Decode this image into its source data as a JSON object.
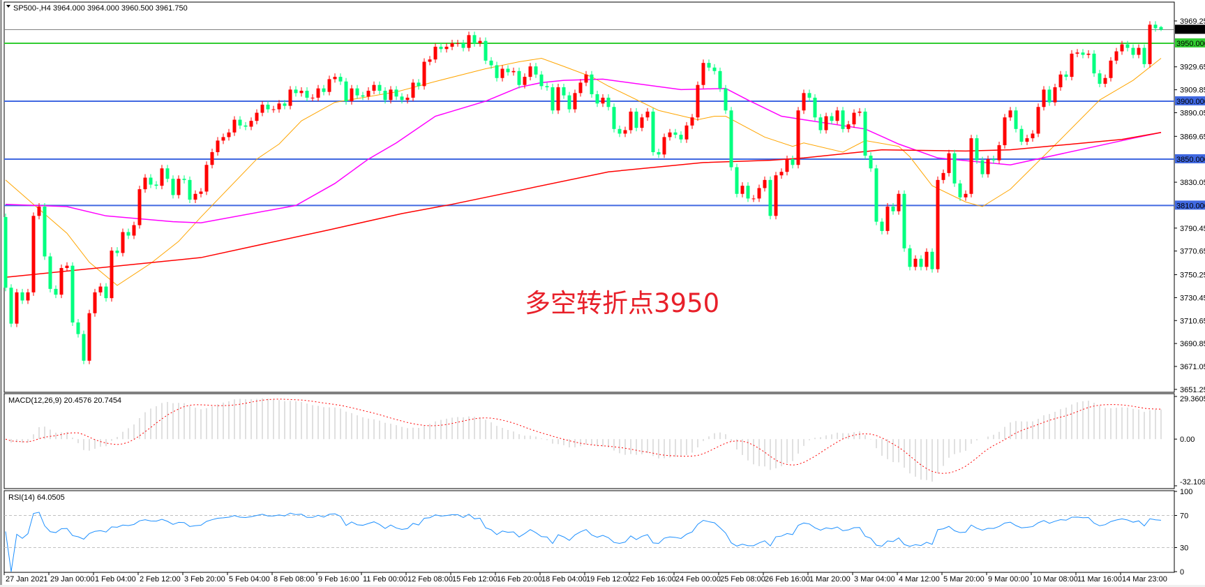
{
  "header": {
    "symbol": "SP500-,H4",
    "ohlc_text": "3964.000 3964.000 3960.500 3961.750",
    "menu_icon": "triangle-down-icon"
  },
  "annotation": "多空转折点3950",
  "indicators": {
    "macd_label": "MACD(12,26,9) 20.4576 20.7454",
    "macd_params": [
      12,
      26,
      9
    ],
    "macd_axis": [
      "29.3605",
      "0.00",
      "-32.1096"
    ],
    "macd_range": [
      -32.1096,
      29.3605
    ],
    "rsi_label": "RSI(14) 64.0505",
    "rsi_period": 14,
    "rsi_axis": [
      "100",
      "70",
      "30",
      "0"
    ],
    "rsi_levels": [
      70,
      30
    ]
  },
  "colors": {
    "bull": "#ff0000",
    "bear": "#00ff7f",
    "support_blue": "#4169e1",
    "pivot_green": "#32cd32",
    "bid_line": "#808080",
    "ma_fast": "#ffa500",
    "ma_mid": "#ff00ff",
    "ma_slow": "#ff0000",
    "macd_hist": "#c0c0c0",
    "macd_signal": "#ff0000",
    "rsi": "#1e90ff"
  },
  "chart_data": {
    "type": "candlestick",
    "title": "SP500-,H4",
    "ylim": [
      3651.25,
      3969.25
    ],
    "price_ticks": [
      "3969.250",
      "3929.650",
      "3909.850",
      "3890.050",
      "3869.650",
      "3830.050",
      "3790.450",
      "3770.650",
      "3750.250",
      "3730.450",
      "3710.650",
      "3690.850",
      "3671.050",
      "3651.250"
    ],
    "first_open": 3800,
    "last_candle": {
      "open": 3964.0,
      "high": 3964.0,
      "low": 3960.5,
      "close": 3961.75
    },
    "closes": [
      3739,
      3708,
      3735,
      3728,
      3735,
      3801,
      3809,
      3766,
      3738,
      3733,
      3756,
      3758,
      3709,
      3699,
      3676,
      3717,
      3735,
      3740,
      3730,
      3771,
      3769,
      3787,
      3784,
      3793,
      3824,
      3834,
      3828,
      3827,
      3842,
      3833,
      3819,
      3833,
      3832,
      3815,
      3820,
      3822,
      3845,
      3856,
      3866,
      3869,
      3873,
      3884,
      3879,
      3878,
      3883,
      3890,
      3897,
      3893,
      3893,
      3898,
      3896,
      3910,
      3907,
      3909,
      3903,
      3903,
      3911,
      3908,
      3919,
      3921,
      3917,
      3900,
      3911,
      3905,
      3904,
      3909,
      3914,
      3909,
      3901,
      3910,
      3904,
      3901,
      3903,
      3916,
      3913,
      3934,
      3936,
      3947,
      3945,
      3947,
      3950,
      3950,
      3946,
      3957,
      3950,
      3952,
      3935,
      3931,
      3920,
      3928,
      3925,
      3926,
      3914,
      3921,
      3930,
      3923,
      3913,
      3912,
      3892,
      3912,
      3905,
      3893,
      3907,
      3916,
      3923,
      3906,
      3898,
      3903,
      3895,
      3876,
      3872,
      3875,
      3891,
      3877,
      3886,
      3891,
      3856,
      3854,
      3869,
      3873,
      3871,
      3867,
      3879,
      3886,
      3914,
      3933,
      3929,
      3926,
      3911,
      3892,
      3843,
      3820,
      3827,
      3816,
      3816,
      3825,
      3832,
      3801,
      3836,
      3839,
      3850,
      3845,
      3892,
      3907,
      3903,
      3886,
      3875,
      3887,
      3883,
      3892,
      3876,
      3880,
      3890,
      3891,
      3853,
      3842,
      3796,
      3788,
      3809,
      3805,
      3820,
      3773,
      3757,
      3764,
      3757,
      3770,
      3755,
      3832,
      3838,
      3855,
      3829,
      3817,
      3820,
      3868,
      3849,
      3837,
      3850,
      3849,
      3862,
      3886,
      3892,
      3876,
      3865,
      3868,
      3872,
      3895,
      3910,
      3899,
      3912,
      3923,
      3921,
      3941,
      3942,
      3940,
      3941,
      3924,
      3915,
      3920,
      3935,
      3943,
      3949,
      3946,
      3940,
      3946,
      3932,
      3966,
      3963,
      3961.75
    ],
    "moving_averages": [
      {
        "color_key": "ma_fast",
        "points": [
          [
            0,
            3832
          ],
          [
            5,
            3811
          ],
          [
            11,
            3786
          ],
          [
            15,
            3761
          ],
          [
            20,
            3741
          ],
          [
            26,
            3760
          ],
          [
            31,
            3779
          ],
          [
            35,
            3800
          ],
          [
            45,
            3850
          ],
          [
            49,
            3863
          ],
          [
            53,
            3883
          ],
          [
            59,
            3899
          ],
          [
            70,
            3908
          ],
          [
            77,
            3917
          ],
          [
            86,
            3928
          ],
          [
            92,
            3934
          ],
          [
            96,
            3937
          ],
          [
            100,
            3930
          ],
          [
            105,
            3921
          ],
          [
            108,
            3913
          ],
          [
            117,
            3892
          ],
          [
            124,
            3884
          ],
          [
            127,
            3887
          ],
          [
            129,
            3887
          ],
          [
            136,
            3869
          ],
          [
            141,
            3861
          ],
          [
            143,
            3864
          ],
          [
            150,
            3856
          ],
          [
            154,
            3866
          ],
          [
            160,
            3861
          ],
          [
            162,
            3852
          ],
          [
            166,
            3827
          ],
          [
            172,
            3813
          ],
          [
            175,
            3809
          ],
          [
            180,
            3824
          ],
          [
            189,
            3867
          ],
          [
            196,
            3901
          ],
          [
            202,
            3918
          ],
          [
            207,
            3937
          ]
        ]
      },
      {
        "color_key": "ma_mid",
        "points": [
          [
            0,
            3811
          ],
          [
            11,
            3809
          ],
          [
            18,
            3801
          ],
          [
            30,
            3796
          ],
          [
            35,
            3795
          ],
          [
            52,
            3810
          ],
          [
            59,
            3829
          ],
          [
            65,
            3850
          ],
          [
            70,
            3864
          ],
          [
            77,
            3887
          ],
          [
            86,
            3900
          ],
          [
            92,
            3912
          ],
          [
            96,
            3916
          ],
          [
            100,
            3918
          ],
          [
            107,
            3919
          ],
          [
            121,
            3910
          ],
          [
            129,
            3911
          ],
          [
            133,
            3901
          ],
          [
            139,
            3887
          ],
          [
            143,
            3884
          ],
          [
            154,
            3876
          ],
          [
            160,
            3863
          ],
          [
            167,
            3851
          ],
          [
            180,
            3845
          ],
          [
            202,
            3868
          ],
          [
            207,
            3873
          ]
        ]
      },
      {
        "color_key": "ma_slow",
        "points": [
          [
            0,
            3748
          ],
          [
            35,
            3765
          ],
          [
            58,
            3789
          ],
          [
            71,
            3803
          ],
          [
            80,
            3811
          ],
          [
            108,
            3839
          ],
          [
            125,
            3847
          ],
          [
            137,
            3849
          ],
          [
            143,
            3851
          ],
          [
            157,
            3858
          ],
          [
            172,
            3857
          ],
          [
            180,
            3858
          ],
          [
            200,
            3867
          ],
          [
            207,
            3873
          ]
        ]
      }
    ],
    "horizontal_lines": [
      {
        "price": 3961.75,
        "label": "3961.750",
        "color_key": "bid_line",
        "label_bg": "#000000",
        "label_fg": "#ffffff"
      },
      {
        "price": 3950,
        "label": "3950.000",
        "color_key": "pivot_green",
        "label_bg": "#32cd32",
        "label_fg": "#ffffff"
      },
      {
        "price": 3900,
        "label": "3900.000",
        "color_key": "support_blue",
        "label_bg": "#4169e1",
        "label_fg": "#ffffff"
      },
      {
        "price": 3850,
        "label": "3850.000",
        "color_key": "support_blue",
        "label_bg": "#4169e1",
        "label_fg": "#ffffff"
      },
      {
        "price": 3810,
        "label": "3810.000",
        "color_key": "support_blue",
        "label_bg": "#4169e1",
        "label_fg": "#ffffff"
      }
    ],
    "time_labels": [
      {
        "index": 0,
        "label": "27 Jan 2021"
      },
      {
        "index": 8,
        "label": "29 Jan 00:00"
      },
      {
        "index": 16,
        "label": "1 Feb 04:00"
      },
      {
        "index": 24,
        "label": "2 Feb 12:00"
      },
      {
        "index": 32,
        "label": "3 Feb 20:00"
      },
      {
        "index": 40,
        "label": "5 Feb 04:00"
      },
      {
        "index": 48,
        "label": "8 Feb 08:00"
      },
      {
        "index": 56,
        "label": "9 Feb 16:00"
      },
      {
        "index": 64,
        "label": "11 Feb 00:00"
      },
      {
        "index": 72,
        "label": "12 Feb 08:00"
      },
      {
        "index": 80,
        "label": "15 Feb 12:00"
      },
      {
        "index": 88,
        "label": "16 Feb 20:00"
      },
      {
        "index": 96,
        "label": "18 Feb 04:00"
      },
      {
        "index": 104,
        "label": "19 Feb 12:00"
      },
      {
        "index": 112,
        "label": "22 Feb 16:00"
      },
      {
        "index": 120,
        "label": "24 Feb 00:00"
      },
      {
        "index": 128,
        "label": "25 Feb 08:00"
      },
      {
        "index": 136,
        "label": "26 Feb 16:00"
      },
      {
        "index": 144,
        "label": "1 Mar 20:00"
      },
      {
        "index": 152,
        "label": "3 Mar 04:00"
      },
      {
        "index": 160,
        "label": "4 Mar 12:00"
      },
      {
        "index": 168,
        "label": "5 Mar 20:00"
      },
      {
        "index": 176,
        "label": "9 Mar 00:00"
      },
      {
        "index": 184,
        "label": "10 Mar 08:00"
      },
      {
        "index": 192,
        "label": "11 Mar 16:00"
      },
      {
        "index": 200,
        "label": "14 Mar 23:00"
      }
    ]
  }
}
